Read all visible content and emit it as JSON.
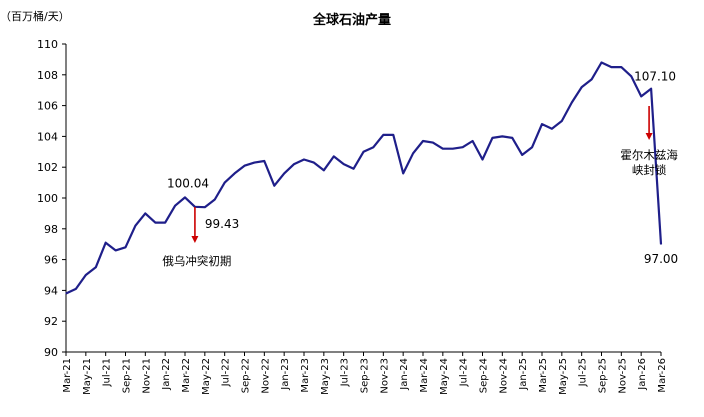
{
  "chart_data": {
    "type": "line",
    "title": "全球石油产量",
    "unit_label": "（百万桶/天）",
    "ylim": [
      90,
      110
    ],
    "yticks": [
      90,
      92,
      94,
      96,
      98,
      100,
      102,
      104,
      106,
      108,
      110
    ],
    "grid": false,
    "legend": "none",
    "line_color": "#1f1f8a",
    "annotation_color": "#cc0000",
    "x_tick_labels": [
      "Mar-21",
      "May-21",
      "Jul-21",
      "Sep-21",
      "Nov-21",
      "Jan-22",
      "Mar-22",
      "May-22",
      "Jul-22",
      "Sep-22",
      "Nov-22",
      "Jan-23",
      "Mar-23",
      "May-23",
      "Jul-23",
      "Sep-23",
      "Nov-23",
      "Jan-24",
      "Mar-24",
      "May-24",
      "Jul-24",
      "Sep-24",
      "Nov-24",
      "Jan-25",
      "Mar-25",
      "May-25",
      "Jul-25",
      "Sep-25",
      "Nov-25",
      "Jan-26",
      "Mar-26"
    ],
    "x": [
      "Mar-21",
      "Apr-21",
      "May-21",
      "Jun-21",
      "Jul-21",
      "Aug-21",
      "Sep-21",
      "Oct-21",
      "Nov-21",
      "Dec-21",
      "Jan-22",
      "Feb-22",
      "Mar-22",
      "Apr-22",
      "May-22",
      "Jun-22",
      "Jul-22",
      "Aug-22",
      "Sep-22",
      "Oct-22",
      "Nov-22",
      "Dec-22",
      "Jan-23",
      "Feb-23",
      "Mar-23",
      "Apr-23",
      "May-23",
      "Jun-23",
      "Jul-23",
      "Aug-23",
      "Sep-23",
      "Oct-23",
      "Nov-23",
      "Dec-23",
      "Jan-24",
      "Feb-24",
      "Mar-24",
      "Apr-24",
      "May-24",
      "Jun-24",
      "Jul-24",
      "Aug-24",
      "Sep-24",
      "Oct-24",
      "Nov-24",
      "Dec-24",
      "Jan-25",
      "Feb-25",
      "Mar-25",
      "Apr-25",
      "May-25",
      "Jun-25",
      "Jul-25",
      "Aug-25",
      "Sep-25",
      "Oct-25",
      "Nov-25",
      "Dec-25",
      "Jan-26",
      "Feb-26",
      "Mar-26"
    ],
    "values": [
      93.8,
      94.1,
      95.0,
      95.5,
      97.1,
      96.6,
      96.8,
      98.2,
      99.0,
      98.4,
      98.4,
      99.5,
      100.04,
      99.43,
      99.4,
      99.9,
      101.0,
      101.6,
      102.1,
      102.3,
      102.4,
      100.8,
      101.6,
      102.2,
      102.5,
      102.3,
      101.8,
      102.7,
      102.2,
      101.9,
      103.0,
      103.3,
      104.1,
      104.1,
      101.6,
      102.9,
      103.7,
      103.6,
      103.2,
      103.2,
      103.3,
      103.7,
      102.5,
      103.9,
      104.0,
      103.9,
      102.8,
      103.3,
      104.8,
      104.5,
      105.0,
      106.2,
      107.2,
      107.7,
      108.8,
      108.5,
      108.5,
      107.9,
      106.6,
      107.1,
      97.0
    ],
    "data_labels": [
      {
        "x": "Mar-22",
        "text": "100.04"
      },
      {
        "x": "Apr-22",
        "text": "99.43"
      },
      {
        "x": "Feb-26",
        "text": "107.10"
      },
      {
        "x": "Mar-26",
        "text": "97.00"
      }
    ],
    "annotations": [
      {
        "x": "Apr-22",
        "lines": [
          "俄乌冲突初期"
        ]
      },
      {
        "x": "Feb-26",
        "lines": [
          "霍尔木兹海",
          "峡封锁"
        ]
      }
    ]
  }
}
